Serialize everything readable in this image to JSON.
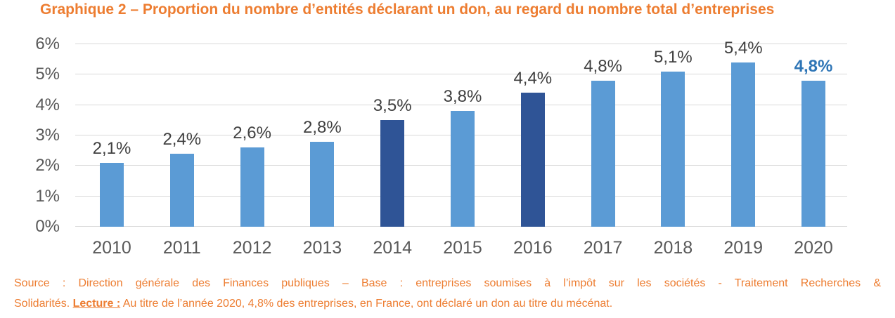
{
  "chart_data": {
    "type": "bar",
    "title": "Graphique 2 – Proportion du nombre d’entités déclarant un don, au regard du nombre total d’entreprises",
    "categories": [
      "2010",
      "2011",
      "2012",
      "2013",
      "2014",
      "2015",
      "2016",
      "2017",
      "2018",
      "2019",
      "2020"
    ],
    "values": [
      2.1,
      2.4,
      2.6,
      2.8,
      3.5,
      3.8,
      4.4,
      4.8,
      5.1,
      5.4,
      4.8
    ],
    "labels": [
      "2,1%",
      "2,4%",
      "2,6%",
      "2,8%",
      "3,5%",
      "3,8%",
      "4,4%",
      "4,8%",
      "5,1%",
      "5,4%",
      "4,8%"
    ],
    "ylim": [
      0,
      6
    ],
    "yticks": [
      "0%",
      "1%",
      "2%",
      "3%",
      "4%",
      "5%",
      "6%"
    ],
    "grid": true,
    "legend": false,
    "highlight_indices": [
      4,
      6
    ],
    "accent_label_index": 10,
    "colors": {
      "bar": "#5B9BD5",
      "bar_highlight": "#2F5496",
      "accent_label": "#2E75B6",
      "gridline": "#D9D9D9",
      "axis_text": "#595959",
      "value_text": "#404040",
      "orange": "#ED7D31"
    }
  },
  "footer": {
    "line1": "Source : Direction générale des Finances publiques – Base : entreprises soumises à l’impôt sur les sociétés - Traitement Recherches &",
    "line2_prefix": "Solidarités. ",
    "lecture_label": "Lecture :",
    "line2_suffix": " Au titre de l’année 2020, 4,8% des entreprises, en France, ont déclaré un don au titre du mécénat."
  }
}
